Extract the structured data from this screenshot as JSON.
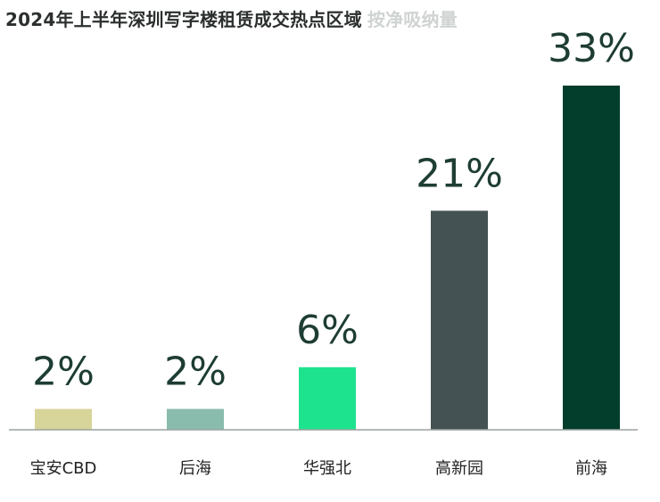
{
  "header": {
    "title": "2024年上半年深圳写字楼租赁成交热点区域",
    "subtitle": "按净吸纳量"
  },
  "chart_data": {
    "type": "bar",
    "categories": [
      "宝安CBD",
      "后海",
      "华强北",
      "高新园",
      "前海"
    ],
    "values": [
      2,
      2,
      6,
      21,
      33
    ],
    "value_labels": [
      "2%",
      "2%",
      "6%",
      "21%",
      "33%"
    ],
    "unit": "%",
    "colors": [
      "#d8d59b",
      "#8abcae",
      "#1ee38e",
      "#455253",
      "#033d2c"
    ],
    "axis_color": "#9aa39f",
    "ylim": [
      0,
      33
    ],
    "grid": false,
    "legend": "none"
  }
}
